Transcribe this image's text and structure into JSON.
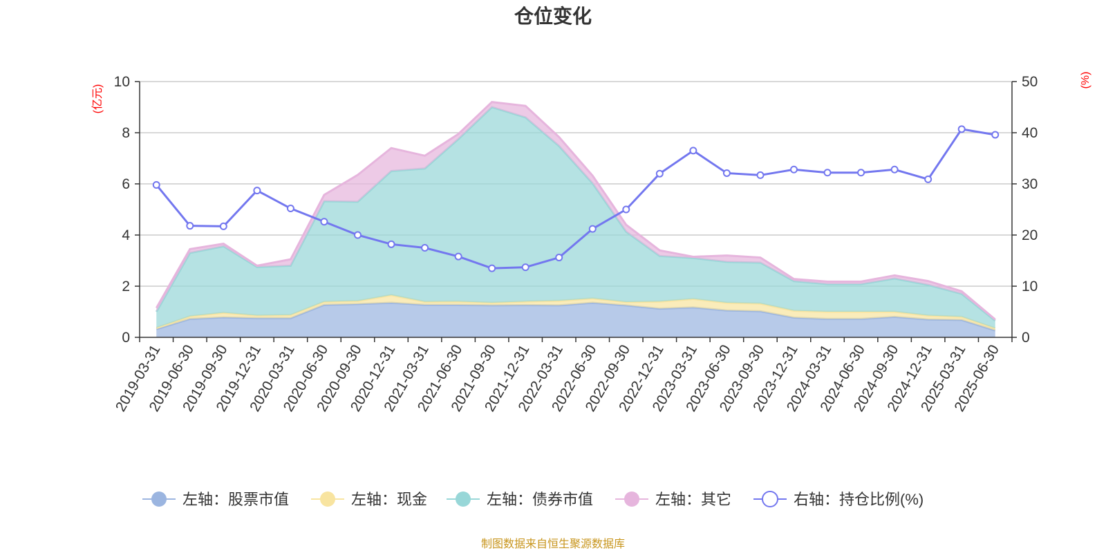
{
  "chart_data": {
    "type": "area",
    "title": "仓位变化",
    "left_axis_unit": "(亿元)",
    "right_axis_unit": "(%)",
    "ylim_left": [
      0,
      10
    ],
    "ylim_right": [
      0,
      50
    ],
    "yticks_left": [
      "0",
      "2",
      "4",
      "6",
      "8",
      "10"
    ],
    "yticks_right": [
      "0",
      "10",
      "20",
      "30",
      "40",
      "50"
    ],
    "grid": true,
    "legend_position": "bottom",
    "categories": [
      "2019-03-31",
      "2019-06-30",
      "2019-09-30",
      "2019-12-31",
      "2020-03-31",
      "2020-06-30",
      "2020-09-30",
      "2020-12-31",
      "2021-03-31",
      "2021-06-30",
      "2021-09-30",
      "2021-12-31",
      "2022-03-31",
      "2022-06-30",
      "2022-09-30",
      "2022-12-31",
      "2023-03-31",
      "2023-06-30",
      "2023-09-30",
      "2023-12-31",
      "2024-03-31",
      "2024-06-30",
      "2024-09-30",
      "2024-12-31",
      "2025-03-31",
      "2025-06-30"
    ],
    "stacked_series": [
      {
        "name": "左轴：股票市值",
        "axis": "left",
        "color": "#9bb5e0",
        "values": [
          0.32,
          0.72,
          0.78,
          0.75,
          0.75,
          1.27,
          1.3,
          1.35,
          1.27,
          1.27,
          1.25,
          1.26,
          1.25,
          1.35,
          1.25,
          1.12,
          1.17,
          1.05,
          1.02,
          0.77,
          0.72,
          0.72,
          0.8,
          0.7,
          0.68,
          0.27
        ]
      },
      {
        "name": "左轴：现金",
        "axis": "left",
        "color": "#f8e4a0",
        "values": [
          0.05,
          0.1,
          0.18,
          0.1,
          0.12,
          0.12,
          0.12,
          0.3,
          0.12,
          0.13,
          0.1,
          0.14,
          0.18,
          0.17,
          0.13,
          0.28,
          0.33,
          0.3,
          0.3,
          0.27,
          0.28,
          0.28,
          0.2,
          0.15,
          0.12,
          0.08
        ]
      },
      {
        "name": "左轴：债券市值",
        "axis": "left",
        "color": "#98d7d8",
        "values": [
          0.63,
          2.48,
          2.6,
          1.9,
          1.93,
          3.93,
          3.88,
          4.85,
          5.21,
          6.35,
          7.65,
          7.2,
          6.05,
          4.5,
          2.75,
          1.78,
          1.6,
          1.6,
          1.6,
          1.16,
          1.08,
          1.08,
          1.3,
          1.2,
          0.9,
          0.3
        ]
      },
      {
        "name": "左轴：其它",
        "axis": "left",
        "color": "#e6b5dd",
        "values": [
          0.15,
          0.15,
          0.1,
          0.05,
          0.25,
          0.25,
          1.05,
          0.9,
          0.5,
          0.2,
          0.2,
          0.45,
          0.35,
          0.3,
          0.27,
          0.22,
          0.05,
          0.25,
          0.2,
          0.08,
          0.1,
          0.1,
          0.12,
          0.15,
          0.1,
          0.05
        ]
      }
    ],
    "line_series": [
      {
        "name": "右轴：持仓比例(%)",
        "axis": "right",
        "color": "#7377ef",
        "values": [
          29.8,
          21.8,
          21.7,
          28.7,
          25.2,
          22.6,
          20.0,
          18.2,
          17.5,
          15.8,
          13.5,
          13.7,
          15.6,
          21.2,
          25.0,
          32.0,
          36.5,
          32.1,
          31.7,
          32.8,
          32.2,
          32.2,
          32.8,
          30.9,
          40.7,
          39.6
        ]
      }
    ]
  },
  "legend": [
    {
      "label": "左轴：股票市值",
      "icon": "filled-circle",
      "color": "#9bb5e0"
    },
    {
      "label": "左轴：现金",
      "icon": "filled-circle",
      "color": "#f8e4a0"
    },
    {
      "label": "左轴：债券市值",
      "icon": "filled-circle",
      "color": "#98d7d8"
    },
    {
      "label": "左轴：其它",
      "icon": "filled-circle",
      "color": "#e6b5dd"
    },
    {
      "label": "右轴：持仓比例(%)",
      "icon": "hollow-circle",
      "color": "#7377ef"
    }
  ],
  "source_note": "制图数据来自恒生聚源数据库"
}
